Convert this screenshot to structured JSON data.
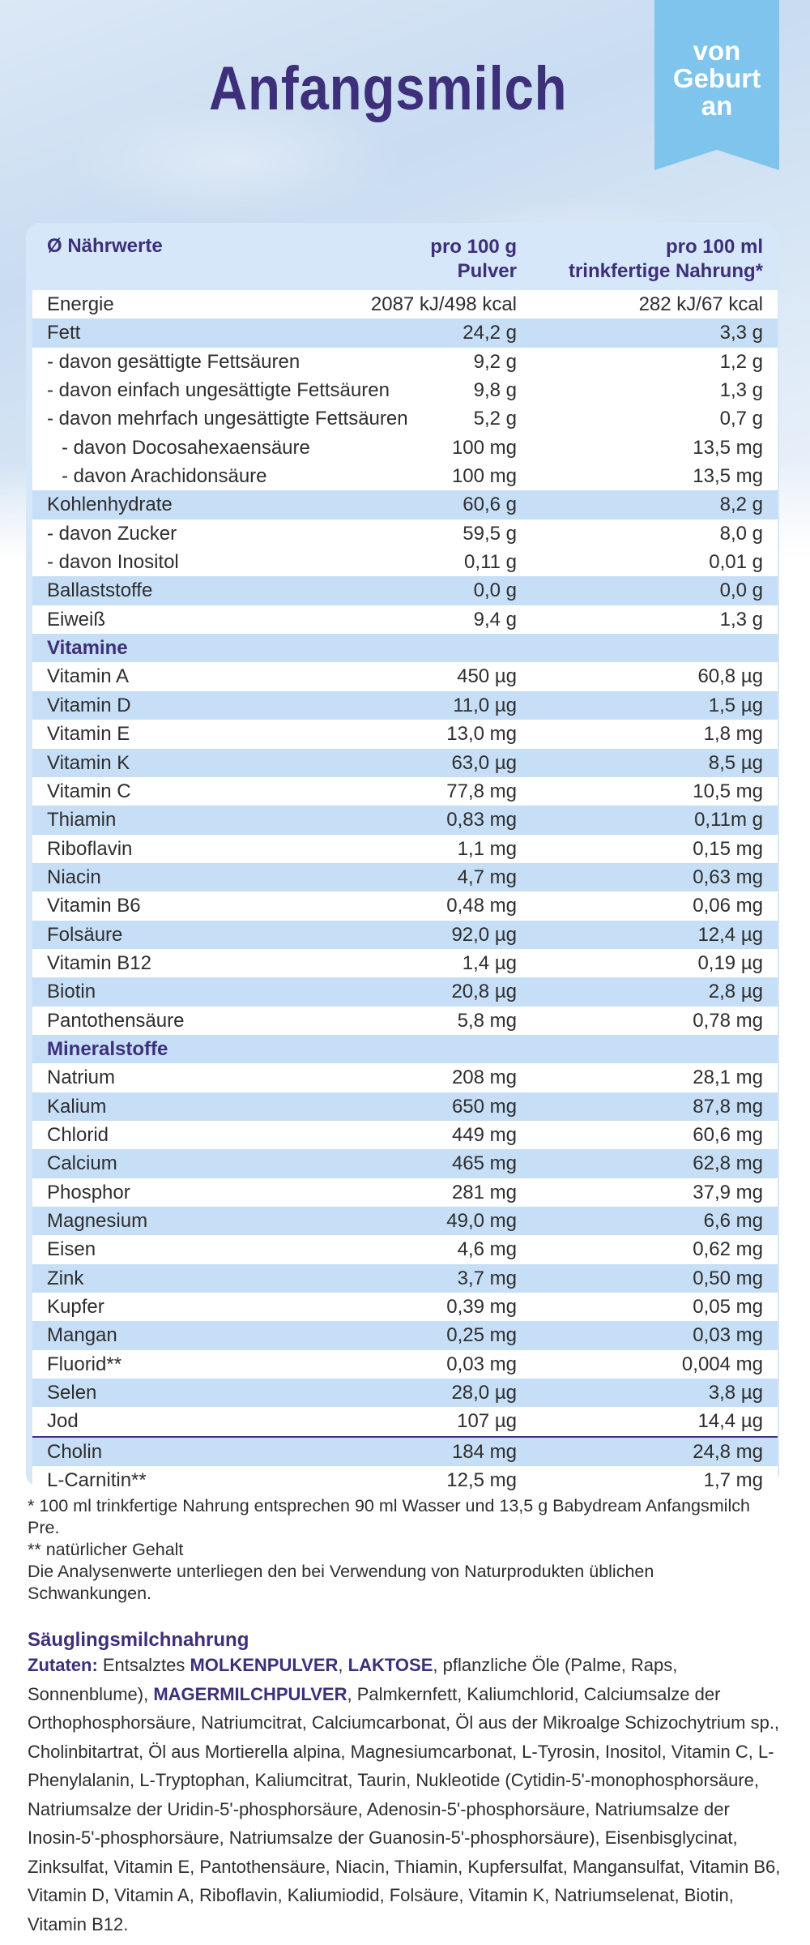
{
  "header": {
    "title": "Anfangsmilch",
    "badge": [
      "von",
      "Geburt",
      "an"
    ]
  },
  "table": {
    "columns": [
      "Ø Nährwerte",
      "pro 100 g\nPulver",
      "pro 100 ml\ntrinkfertige Nahrung*"
    ],
    "col2_line1": "pro 100 g",
    "col2_line2": "Pulver",
    "col3_line1": "pro 100 ml",
    "col3_line2": "trinkfertige Nahrung*",
    "rows": [
      {
        "label": "Energie",
        "g": "2087 kJ/498 kcal",
        "ml": "282 kJ/67 kcal",
        "shade": false,
        "indent": 0
      },
      {
        "label": "Fett",
        "g": "24,2 g",
        "ml": "3,3 g",
        "shade": true,
        "indent": 0
      },
      {
        "label": "- davon gesättigte Fettsäuren",
        "g": "9,2 g",
        "ml": "1,2 g",
        "shade": false,
        "indent": 0
      },
      {
        "label": "- davon einfach ungesättigte Fettsäuren",
        "g": "9,8 g",
        "ml": "1,3 g",
        "shade": false,
        "indent": 0
      },
      {
        "label": "- davon mehrfach ungesättigte Fettsäuren",
        "g": "5,2 g",
        "ml": "0,7 g",
        "shade": false,
        "indent": 0
      },
      {
        "label": "- davon Docosahexaensäure",
        "g": "100 mg",
        "ml": "13,5 mg",
        "shade": false,
        "indent": 1
      },
      {
        "label": "- davon Arachidonsäure",
        "g": "100 mg",
        "ml": "13,5 mg",
        "shade": false,
        "indent": 1
      },
      {
        "label": "Kohlenhydrate",
        "g": "60,6 g",
        "ml": "8,2 g",
        "shade": true,
        "indent": 0
      },
      {
        "label": "- davon Zucker",
        "g": "59,5 g",
        "ml": "8,0 g",
        "shade": false,
        "indent": 0
      },
      {
        "label": "- davon Inositol",
        "g": "0,11 g",
        "ml": "0,01 g",
        "shade": false,
        "indent": 0
      },
      {
        "label": "Ballaststoffe",
        "g": "0,0 g",
        "ml": "0,0 g",
        "shade": true,
        "indent": 0
      },
      {
        "label": "Eiweiß",
        "g": "9,4 g",
        "ml": "1,3 g",
        "shade": false,
        "indent": 0
      },
      {
        "label": "Vitamine",
        "g": "",
        "ml": "",
        "shade": true,
        "section": true,
        "indent": 0
      },
      {
        "label": "Vitamin A",
        "g": "450 µg",
        "ml": "60,8 µg",
        "shade": false,
        "indent": 0
      },
      {
        "label": "Vitamin D",
        "g": "11,0 µg",
        "ml": "1,5 µg",
        "shade": true,
        "indent": 0
      },
      {
        "label": "Vitamin E",
        "g": "13,0 mg",
        "ml": "1,8 mg",
        "shade": false,
        "indent": 0
      },
      {
        "label": "Vitamin K",
        "g": "63,0 µg",
        "ml": "8,5 µg",
        "shade": true,
        "indent": 0
      },
      {
        "label": "Vitamin C",
        "g": "77,8 mg",
        "ml": "10,5 mg",
        "shade": false,
        "indent": 0
      },
      {
        "label": "Thiamin",
        "g": "0,83 mg",
        "ml": "0,11m g",
        "shade": true,
        "indent": 0
      },
      {
        "label": "Riboflavin",
        "g": "1,1 mg",
        "ml": "0,15 mg",
        "shade": false,
        "indent": 0
      },
      {
        "label": "Niacin",
        "g": "4,7 mg",
        "ml": "0,63 mg",
        "shade": true,
        "indent": 0
      },
      {
        "label": "Vitamin B6",
        "g": "0,48 mg",
        "ml": "0,06 mg",
        "shade": false,
        "indent": 0
      },
      {
        "label": "Folsäure",
        "g": "92,0 µg",
        "ml": "12,4 µg",
        "shade": true,
        "indent": 0
      },
      {
        "label": "Vitamin B12",
        "g": "1,4 µg",
        "ml": "0,19 µg",
        "shade": false,
        "indent": 0
      },
      {
        "label": "Biotin",
        "g": "20,8 µg",
        "ml": "2,8 µg",
        "shade": true,
        "indent": 0
      },
      {
        "label": "Pantothensäure",
        "g": "5,8 mg",
        "ml": "0,78 mg",
        "shade": false,
        "indent": 0
      },
      {
        "label": "Mineralstoffe",
        "g": "",
        "ml": "",
        "shade": true,
        "section": true,
        "indent": 0
      },
      {
        "label": "Natrium",
        "g": "208 mg",
        "ml": "28,1 mg",
        "shade": false,
        "indent": 0
      },
      {
        "label": "Kalium",
        "g": "650 mg",
        "ml": "87,8 mg",
        "shade": true,
        "indent": 0
      },
      {
        "label": "Chlorid",
        "g": "449 mg",
        "ml": "60,6 mg",
        "shade": false,
        "indent": 0
      },
      {
        "label": "Calcium",
        "g": "465 mg",
        "ml": "62,8 mg",
        "shade": true,
        "indent": 0
      },
      {
        "label": "Phosphor",
        "g": "281 mg",
        "ml": "37,9 mg",
        "shade": false,
        "indent": 0
      },
      {
        "label": "Magnesium",
        "g": "49,0 mg",
        "ml": "6,6 mg",
        "shade": true,
        "indent": 0
      },
      {
        "label": "Eisen",
        "g": "4,6 mg",
        "ml": "0,62 mg",
        "shade": false,
        "indent": 0
      },
      {
        "label": "Zink",
        "g": "3,7 mg",
        "ml": "0,50 mg",
        "shade": true,
        "indent": 0
      },
      {
        "label": "Kupfer",
        "g": "0,39 mg",
        "ml": "0,05 mg",
        "shade": false,
        "indent": 0
      },
      {
        "label": "Mangan",
        "g": "0,25 mg",
        "ml": "0,03 mg",
        "shade": true,
        "indent": 0
      },
      {
        "label": "Fluorid**",
        "g": "0,03 mg",
        "ml": "0,004 mg",
        "shade": false,
        "indent": 0
      },
      {
        "label": "Selen",
        "g": "28,0 µg",
        "ml": "3,8 µg",
        "shade": true,
        "indent": 0
      },
      {
        "label": "Jod",
        "g": "107 µg",
        "ml": "14,4 µg",
        "shade": false,
        "indent": 0
      },
      {
        "label": "Cholin",
        "g": "184 mg",
        "ml": "24,8 mg",
        "shade": true,
        "line_top": true,
        "indent": 0
      },
      {
        "label": "L-Carnitin**",
        "g": "12,5 mg",
        "ml": "1,7 mg",
        "shade": false,
        "indent": 0
      }
    ]
  },
  "footnotes": [
    "* 100 ml trinkfertige Nahrung entsprechen 90 ml Wasser und 13,5 g Babydream Anfangsmilch Pre.",
    "** natürlicher Gehalt",
    "Die Analysenwerte unterliegen den bei Verwendung von Naturprodukten üblichen Schwankungen."
  ],
  "ingredients": {
    "heading": "Säuglingsmilchnahrung",
    "label": "Zutaten:",
    "part1": " Entsalztes ",
    "caps1": "MOLKENPULVER",
    "sep1": ", ",
    "caps2": "LAKTOSE",
    "part2": ", pflanzliche Öle (Palme, Raps, Sonnenblume), ",
    "caps3": "MAGERMILCHPULVER",
    "part3": ", Palmkernfett, Kaliumchlorid, Calciumsalze der Orthophosphorsäure, Natriumcitrat, Calciumcarbonat, Öl aus der Mikroalge Schizochytrium sp., Cholinbitartrat, Öl aus Mortierella alpina, Magnesiumcarbonat, L-Tyrosin, Inositol, Vitamin C, L-Phenylalanin, L-Tryptophan, Kaliumcitrat, Taurin, Nukleotide (Cytidin-5'-monophosphorsäure, Natriumsalze der Uridin-5'-phosphorsäure, Adenosin-5'-phosphorsäure, Natriumsalze der Inosin-5'-phosphorsäure, Natriumsalze der Guanosin-5'-phosphorsäure), Eisenbisglycinat, Zinksulfat, Vitamin E, Pantothensäure, Niacin, Thiamin, Kupfersulfat, Mangansulfat, Vitamin B6, Vitamin D, Vitamin A, Riboflavin, Kaliumiodid, Folsäure, Vitamin K, Natriumselenat, Biotin, Vitamin B12."
  },
  "colors": {
    "title": "#3d2f7a",
    "badge": "#7fc4ec",
    "row_shade": "#c6def6"
  }
}
